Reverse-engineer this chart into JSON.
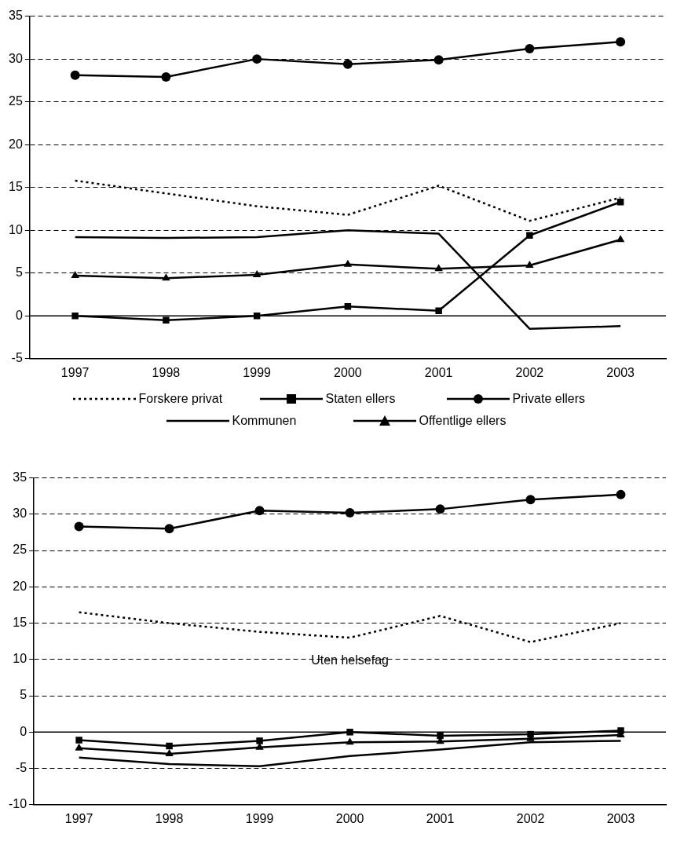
{
  "chart_data": [
    {
      "type": "line",
      "categories": [
        "1997",
        "1998",
        "1999",
        "2000",
        "2001",
        "2002",
        "2003"
      ],
      "ylim": [
        -5,
        35
      ],
      "yticks": [
        -5,
        0,
        5,
        10,
        15,
        20,
        25,
        30,
        35
      ],
      "grid": "y",
      "legend": "bottom",
      "series": [
        {
          "name": "Forskere privat",
          "color": "#000000",
          "marker": "none",
          "line_style": "dotted",
          "values": [
            15.8,
            14.3,
            12.8,
            11.8,
            15.2,
            11.1,
            13.8
          ]
        },
        {
          "name": "Staten ellers",
          "color": "#000000",
          "marker": "square",
          "line_style": "solid",
          "values": [
            0,
            -0.5,
            0,
            1.1,
            0.6,
            9.4,
            13.3
          ]
        },
        {
          "name": "Private ellers",
          "color": "#000000",
          "marker": "circle",
          "line_style": "solid",
          "values": [
            28.1,
            27.9,
            30.0,
            29.4,
            29.9,
            31.2,
            32.0
          ]
        },
        {
          "name": "Kommunen",
          "color": "#000000",
          "marker": "none",
          "line_style": "solid",
          "values": [
            9.2,
            9.1,
            9.2,
            10.0,
            9.6,
            -1.5,
            -1.2
          ]
        },
        {
          "name": "Offentlige ellers",
          "color": "#000000",
          "marker": "triangle",
          "line_style": "solid",
          "values": [
            4.7,
            4.4,
            4.8,
            6.0,
            5.5,
            5.9,
            8.9
          ]
        }
      ]
    },
    {
      "type": "line",
      "categories": [
        "1997",
        "1998",
        "1999",
        "2000",
        "2001",
        "2002",
        "2003"
      ],
      "ylim": [
        -10,
        35
      ],
      "yticks": [
        -10,
        -5,
        0,
        5,
        10,
        15,
        20,
        25,
        30,
        35
      ],
      "grid": "y",
      "annotations": [
        "Uten helsefag"
      ],
      "series": [
        {
          "color": "#000000",
          "marker": "none",
          "line_style": "dotted",
          "values": [
            16.5,
            15.0,
            13.8,
            13.0,
            16.0,
            12.4,
            15.0
          ]
        },
        {
          "color": "#000000",
          "marker": "square",
          "line_style": "solid",
          "values": [
            -1.1,
            -1.9,
            -1.2,
            0,
            -0.5,
            -0.3,
            0.2
          ]
        },
        {
          "color": "#000000",
          "marker": "circle",
          "line_style": "solid",
          "values": [
            28.3,
            28.0,
            30.5,
            30.2,
            30.7,
            32.0,
            32.7
          ]
        },
        {
          "color": "#000000",
          "marker": "none",
          "line_style": "solid",
          "values": [
            -3.5,
            -4.4,
            -4.7,
            -3.3,
            -2.4,
            -1.4,
            -1.2
          ]
        },
        {
          "color": "#000000",
          "marker": "triangle",
          "line_style": "solid",
          "values": [
            -2.2,
            -3.0,
            -2.1,
            -1.4,
            -1.3,
            -0.9,
            -0.4
          ]
        }
      ]
    }
  ]
}
